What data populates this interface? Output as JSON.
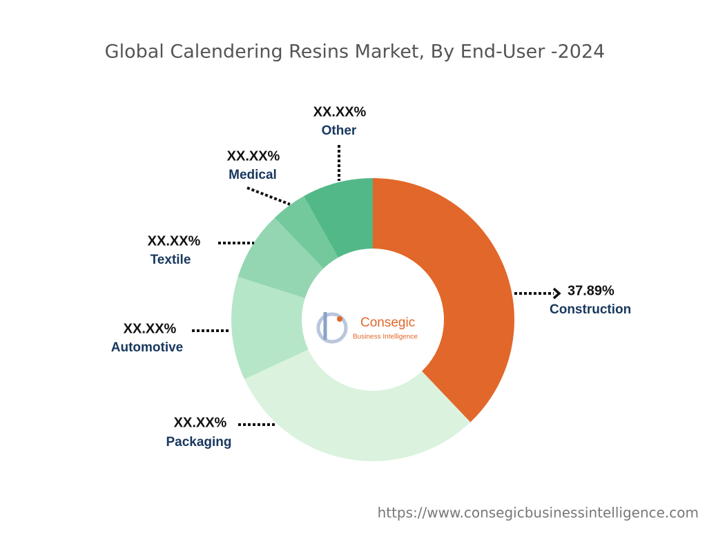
{
  "chart_data": {
    "type": "donut",
    "title": "Global Calendering Resins Market, By End-User -2024",
    "categories": [
      "Construction",
      "Packaging",
      "Automotive",
      "Textile",
      "Medical",
      "Other"
    ],
    "values": [
      37.89,
      30.2,
      11.8,
      7.9,
      4.1,
      8.1
    ],
    "value_labels": [
      "37.89%",
      "XX.XX%",
      "XX.XX%",
      "XX.XX%",
      "XX.XX%",
      "XX.XX%"
    ],
    "colors": [
      "#e2672a",
      "#daf2de",
      "#b5e6c7",
      "#93d6b1",
      "#73c99c",
      "#52b888"
    ],
    "logo": {
      "name": "Consegic",
      "tagline": "Business Intelligence"
    },
    "source": "https://www.consegicbusinessintelligence.com"
  }
}
